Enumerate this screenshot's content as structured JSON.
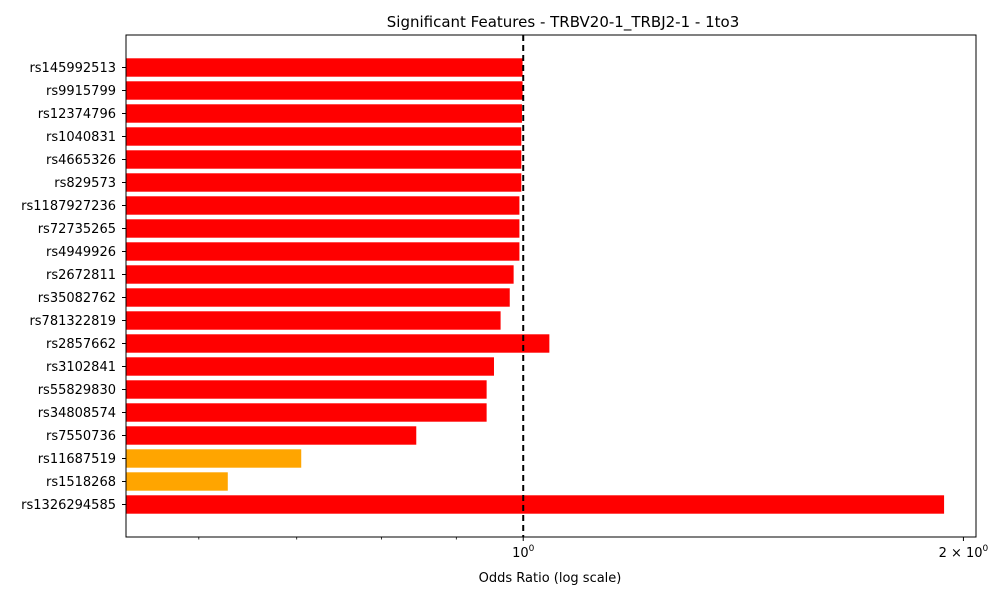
{
  "chart_data": {
    "type": "bar",
    "orientation": "horizontal",
    "title": "Significant Features - TRBV20-1_TRBJ2-1 - 1to3",
    "xlabel": "Odds Ratio (log scale)",
    "ylabel": "",
    "x_scale": "log",
    "xlim": [
      0.535,
      2.04
    ],
    "reference_line": {
      "value": 1.0,
      "style": "dashed",
      "color": "#000000"
    },
    "x_major_ticks": [
      {
        "value": 1.0,
        "base": "10",
        "exponent": "0"
      },
      {
        "value": 2.0,
        "base": "2 × 10",
        "exponent": "0"
      }
    ],
    "x_minor_ticks": [
      0.6,
      0.7,
      0.8,
      0.9
    ],
    "colors": {
      "positive": "#ff0000",
      "negative": "#ffa500"
    },
    "grid": false,
    "categories": [
      "rs145992513",
      "rs9915799",
      "rs12374796",
      "rs1040831",
      "rs4665326",
      "rs829573",
      "rs1187927236",
      "rs72735265",
      "rs4949926",
      "rs2672811",
      "rs35082762",
      "rs781322819",
      "rs2857662",
      "rs3102841",
      "rs55829830",
      "rs34808574",
      "rs7550736",
      "rs11687519",
      "rs1518268",
      "rs1326294585"
    ],
    "values": [
      0.999,
      0.999,
      0.998,
      0.997,
      0.997,
      0.997,
      0.994,
      0.994,
      0.994,
      0.985,
      0.979,
      0.965,
      1.042,
      0.955,
      0.944,
      0.944,
      0.845,
      0.705,
      0.628,
      1.94
    ],
    "bar_colors": [
      "#ff0000",
      "#ff0000",
      "#ff0000",
      "#ff0000",
      "#ff0000",
      "#ff0000",
      "#ff0000",
      "#ff0000",
      "#ff0000",
      "#ff0000",
      "#ff0000",
      "#ff0000",
      "#ff0000",
      "#ff0000",
      "#ff0000",
      "#ff0000",
      "#ff0000",
      "#ffa500",
      "#ffa500",
      "#ff0000"
    ]
  }
}
